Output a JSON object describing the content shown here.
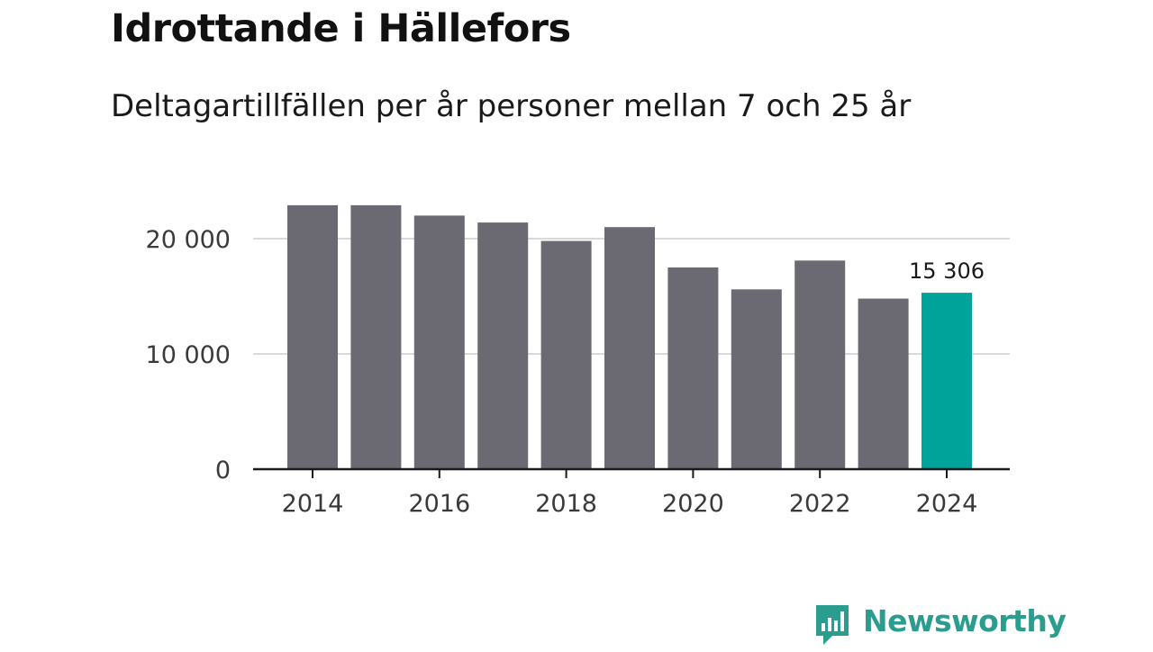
{
  "header": {
    "title": "Idrottande i Hällefors",
    "subtitle": "Deltagartillfällen per år personer mellan 7 och 25 år"
  },
  "brand": {
    "name": "Newsworthy",
    "icon": "bar-chart-speech-bubble-icon",
    "color": "#2a9d8f"
  },
  "chart_data": {
    "type": "bar",
    "title": "Idrottande i Hällefors",
    "subtitle": "Deltagartillfällen per år personer mellan 7 och 25 år",
    "categories": [
      "2014",
      "2015",
      "2016",
      "2017",
      "2018",
      "2019",
      "2020",
      "2021",
      "2022",
      "2023",
      "2024"
    ],
    "values": [
      22900,
      22900,
      22000,
      21400,
      19800,
      21000,
      17500,
      15600,
      18100,
      14800,
      15306
    ],
    "xticks": [
      "2014",
      "2016",
      "2018",
      "2020",
      "2022",
      "2024"
    ],
    "yticks": [
      0,
      10000,
      20000
    ],
    "ytick_labels": [
      "0",
      "10 000",
      "20 000"
    ],
    "ylim": [
      0,
      25000
    ],
    "xlabel": "",
    "ylabel": "",
    "grid": true,
    "highlight_index": 10,
    "highlight_label": "15 306",
    "colors": {
      "bar": "#6b6a72",
      "highlight": "#00a39a",
      "grid": "#d9d9d9",
      "axis": "#1a1a1a"
    }
  }
}
